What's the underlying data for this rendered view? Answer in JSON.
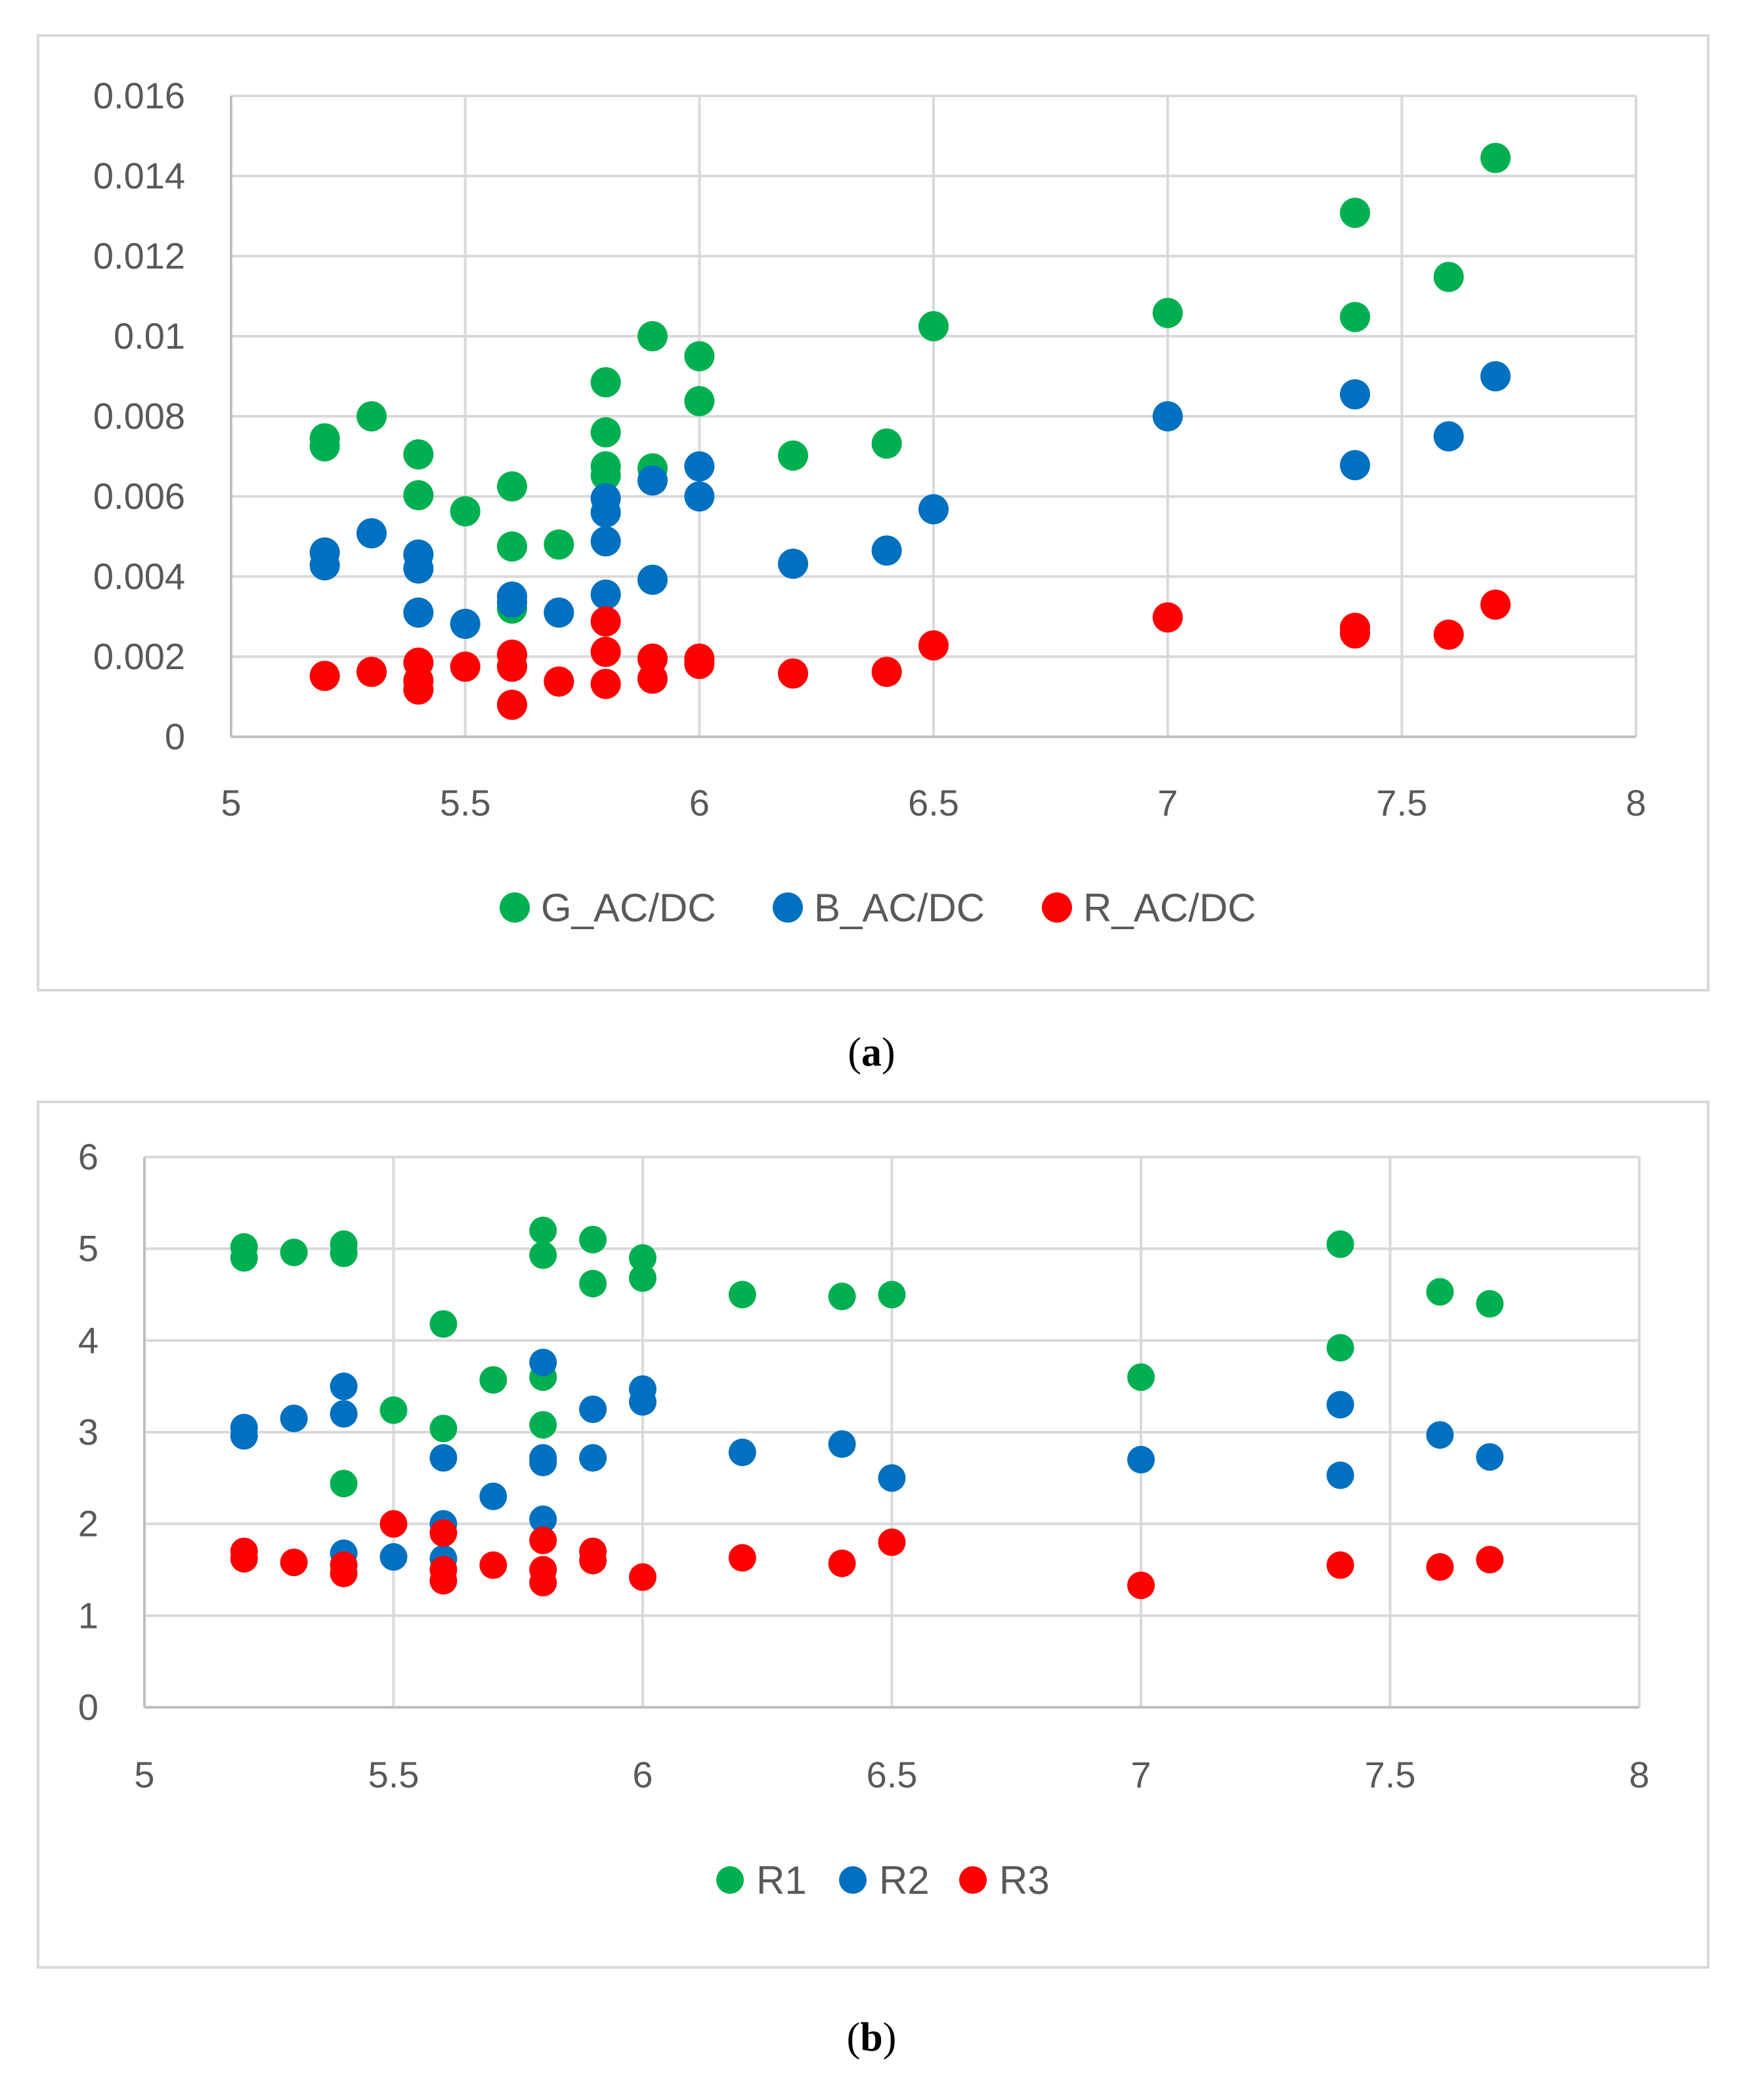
{
  "chart_data": [
    {
      "type": "scatter",
      "caption": "(a)",
      "title": "",
      "xlabel": "",
      "ylabel": "",
      "xlim": [
        5,
        8
      ],
      "ylim": [
        0,
        0.016
      ],
      "xticks": [
        "5",
        "5.5",
        "6",
        "6.5",
        "7",
        "7.5",
        "8"
      ],
      "yticks": [
        "0",
        "0.002",
        "0.004",
        "0.006",
        "0.008",
        "0.01",
        "0.012",
        "0.014",
        "0.016"
      ],
      "grid": true,
      "legend": "bottom",
      "series": [
        {
          "name": "G_AC/DC",
          "color": "#00b050",
          "points": [
            [
              5.2,
              0.00745
            ],
            [
              5.2,
              0.00725
            ],
            [
              5.3,
              0.008
            ],
            [
              5.4,
              0.00705
            ],
            [
              5.4,
              0.00603
            ],
            [
              5.5,
              0.00563
            ],
            [
              5.6,
              0.00625
            ],
            [
              5.6,
              0.00475
            ],
            [
              5.6,
              0.0032
            ],
            [
              5.7,
              0.0048
            ],
            [
              5.8,
              0.00885
            ],
            [
              5.8,
              0.0076
            ],
            [
              5.8,
              0.00675
            ],
            [
              5.8,
              0.00652
            ],
            [
              5.9,
              0.01
            ],
            [
              5.9,
              0.0067
            ],
            [
              6.0,
              0.0095
            ],
            [
              6.0,
              0.00838
            ],
            [
              6.2,
              0.00702
            ],
            [
              6.4,
              0.00732
            ],
            [
              6.5,
              0.01025
            ],
            [
              7.0,
              0.01058
            ],
            [
              7.4,
              0.01308
            ],
            [
              7.4,
              0.01048
            ],
            [
              7.6,
              0.01148
            ],
            [
              7.7,
              0.01445
            ]
          ]
        },
        {
          "name": "B_AC/DC",
          "color": "#0070c0",
          "points": [
            [
              5.2,
              0.0046
            ],
            [
              5.2,
              0.00428
            ],
            [
              5.3,
              0.00508
            ],
            [
              5.4,
              0.00455
            ],
            [
              5.4,
              0.0042
            ],
            [
              5.4,
              0.0031
            ],
            [
              5.5,
              0.00282
            ],
            [
              5.6,
              0.0035
            ],
            [
              5.6,
              0.00335
            ],
            [
              5.7,
              0.0031
            ],
            [
              5.8,
              0.00595
            ],
            [
              5.8,
              0.0056
            ],
            [
              5.8,
              0.00488
            ],
            [
              5.8,
              0.00355
            ],
            [
              5.9,
              0.0064
            ],
            [
              5.9,
              0.00392
            ],
            [
              6.0,
              0.00675
            ],
            [
              6.0,
              0.006
            ],
            [
              6.2,
              0.00432
            ],
            [
              6.4,
              0.00465
            ],
            [
              6.5,
              0.00568
            ],
            [
              7.0,
              0.008
            ],
            [
              7.4,
              0.00855
            ],
            [
              7.4,
              0.00678
            ],
            [
              7.6,
              0.0075
            ],
            [
              7.7,
              0.009
            ]
          ]
        },
        {
          "name": "R_AC/DC",
          "color": "#ff0000",
          "points": [
            [
              5.2,
              0.00152
            ],
            [
              5.3,
              0.00162
            ],
            [
              5.4,
              0.00185
            ],
            [
              5.4,
              0.0014
            ],
            [
              5.4,
              0.00118
            ],
            [
              5.5,
              0.00175
            ],
            [
              5.6,
              0.00205
            ],
            [
              5.6,
              0.00175
            ],
            [
              5.6,
              0.0008
            ],
            [
              5.7,
              0.00138
            ],
            [
              5.8,
              0.00288
            ],
            [
              5.8,
              0.00212
            ],
            [
              5.8,
              0.00132
            ],
            [
              5.9,
              0.00195
            ],
            [
              5.9,
              0.00145
            ],
            [
              6.0,
              0.00195
            ],
            [
              6.0,
              0.00182
            ],
            [
              6.2,
              0.00158
            ],
            [
              6.4,
              0.00162
            ],
            [
              6.5,
              0.00228
            ],
            [
              7.0,
              0.00298
            ],
            [
              7.4,
              0.00272
            ],
            [
              7.4,
              0.00258
            ],
            [
              7.6,
              0.00255
            ],
            [
              7.7,
              0.0033
            ]
          ]
        }
      ]
    },
    {
      "type": "scatter",
      "caption": "(b)",
      "title": "",
      "xlabel": "",
      "ylabel": "",
      "xlim": [
        5,
        8
      ],
      "ylim": [
        0,
        6
      ],
      "xticks": [
        "5",
        "5.5",
        "6",
        "6.5",
        "7",
        "7.5",
        "8"
      ],
      "yticks": [
        "0",
        "1",
        "2",
        "3",
        "4",
        "5",
        "6"
      ],
      "grid": true,
      "legend": "bottom",
      "series": [
        {
          "name": "R1",
          "color": "#00b050",
          "points": [
            [
              5.2,
              5.02
            ],
            [
              5.2,
              4.9
            ],
            [
              5.3,
              4.96
            ],
            [
              5.4,
              5.05
            ],
            [
              5.4,
              4.95
            ],
            [
              5.4,
              2.44
            ],
            [
              5.5,
              3.24
            ],
            [
              5.6,
              4.18
            ],
            [
              5.6,
              3.04
            ],
            [
              5.7,
              3.57
            ],
            [
              5.8,
              5.2
            ],
            [
              5.8,
              4.93
            ],
            [
              5.8,
              3.6
            ],
            [
              5.8,
              3.08
            ],
            [
              5.9,
              5.1
            ],
            [
              5.9,
              4.62
            ],
            [
              6.0,
              4.9
            ],
            [
              6.0,
              4.68
            ],
            [
              6.2,
              4.5
            ],
            [
              6.4,
              4.48
            ],
            [
              6.5,
              4.5
            ],
            [
              7.0,
              3.6
            ],
            [
              7.4,
              5.05
            ],
            [
              7.4,
              3.92
            ],
            [
              7.6,
              4.53
            ],
            [
              7.7,
              4.4
            ]
          ]
        },
        {
          "name": "R2",
          "color": "#0070c0",
          "points": [
            [
              5.2,
              3.05
            ],
            [
              5.2,
              2.96
            ],
            [
              5.3,
              3.15
            ],
            [
              5.4,
              3.5
            ],
            [
              5.4,
              3.2
            ],
            [
              5.4,
              1.68
            ],
            [
              5.5,
              1.64
            ],
            [
              5.6,
              2.72
            ],
            [
              5.6,
              2.0
            ],
            [
              5.6,
              1.62
            ],
            [
              5.7,
              2.3
            ],
            [
              5.8,
              3.76
            ],
            [
              5.8,
              2.72
            ],
            [
              5.8,
              2.67
            ],
            [
              5.8,
              2.05
            ],
            [
              5.9,
              3.25
            ],
            [
              5.9,
              2.72
            ],
            [
              6.0,
              3.47
            ],
            [
              6.0,
              3.33
            ],
            [
              6.2,
              2.78
            ],
            [
              6.4,
              2.87
            ],
            [
              6.5,
              2.5
            ],
            [
              7.0,
              2.7
            ],
            [
              7.4,
              3.3
            ],
            [
              7.4,
              2.53
            ],
            [
              7.6,
              2.97
            ],
            [
              7.7,
              2.73
            ]
          ]
        },
        {
          "name": "R3",
          "color": "#ff0000",
          "points": [
            [
              5.2,
              1.7
            ],
            [
              5.2,
              1.62
            ],
            [
              5.3,
              1.58
            ],
            [
              5.4,
              1.55
            ],
            [
              5.4,
              1.46
            ],
            [
              5.5,
              2.0
            ],
            [
              5.6,
              1.9
            ],
            [
              5.6,
              1.5
            ],
            [
              5.6,
              1.38
            ],
            [
              5.7,
              1.55
            ],
            [
              5.8,
              1.82
            ],
            [
              5.8,
              1.5
            ],
            [
              5.8,
              1.36
            ],
            [
              5.9,
              1.7
            ],
            [
              5.9,
              1.6
            ],
            [
              6.0,
              1.42
            ],
            [
              6.2,
              1.63
            ],
            [
              6.4,
              1.57
            ],
            [
              6.5,
              1.8
            ],
            [
              7.0,
              1.33
            ],
            [
              7.4,
              1.55
            ],
            [
              7.6,
              1.53
            ],
            [
              7.7,
              1.61
            ]
          ]
        }
      ]
    }
  ]
}
